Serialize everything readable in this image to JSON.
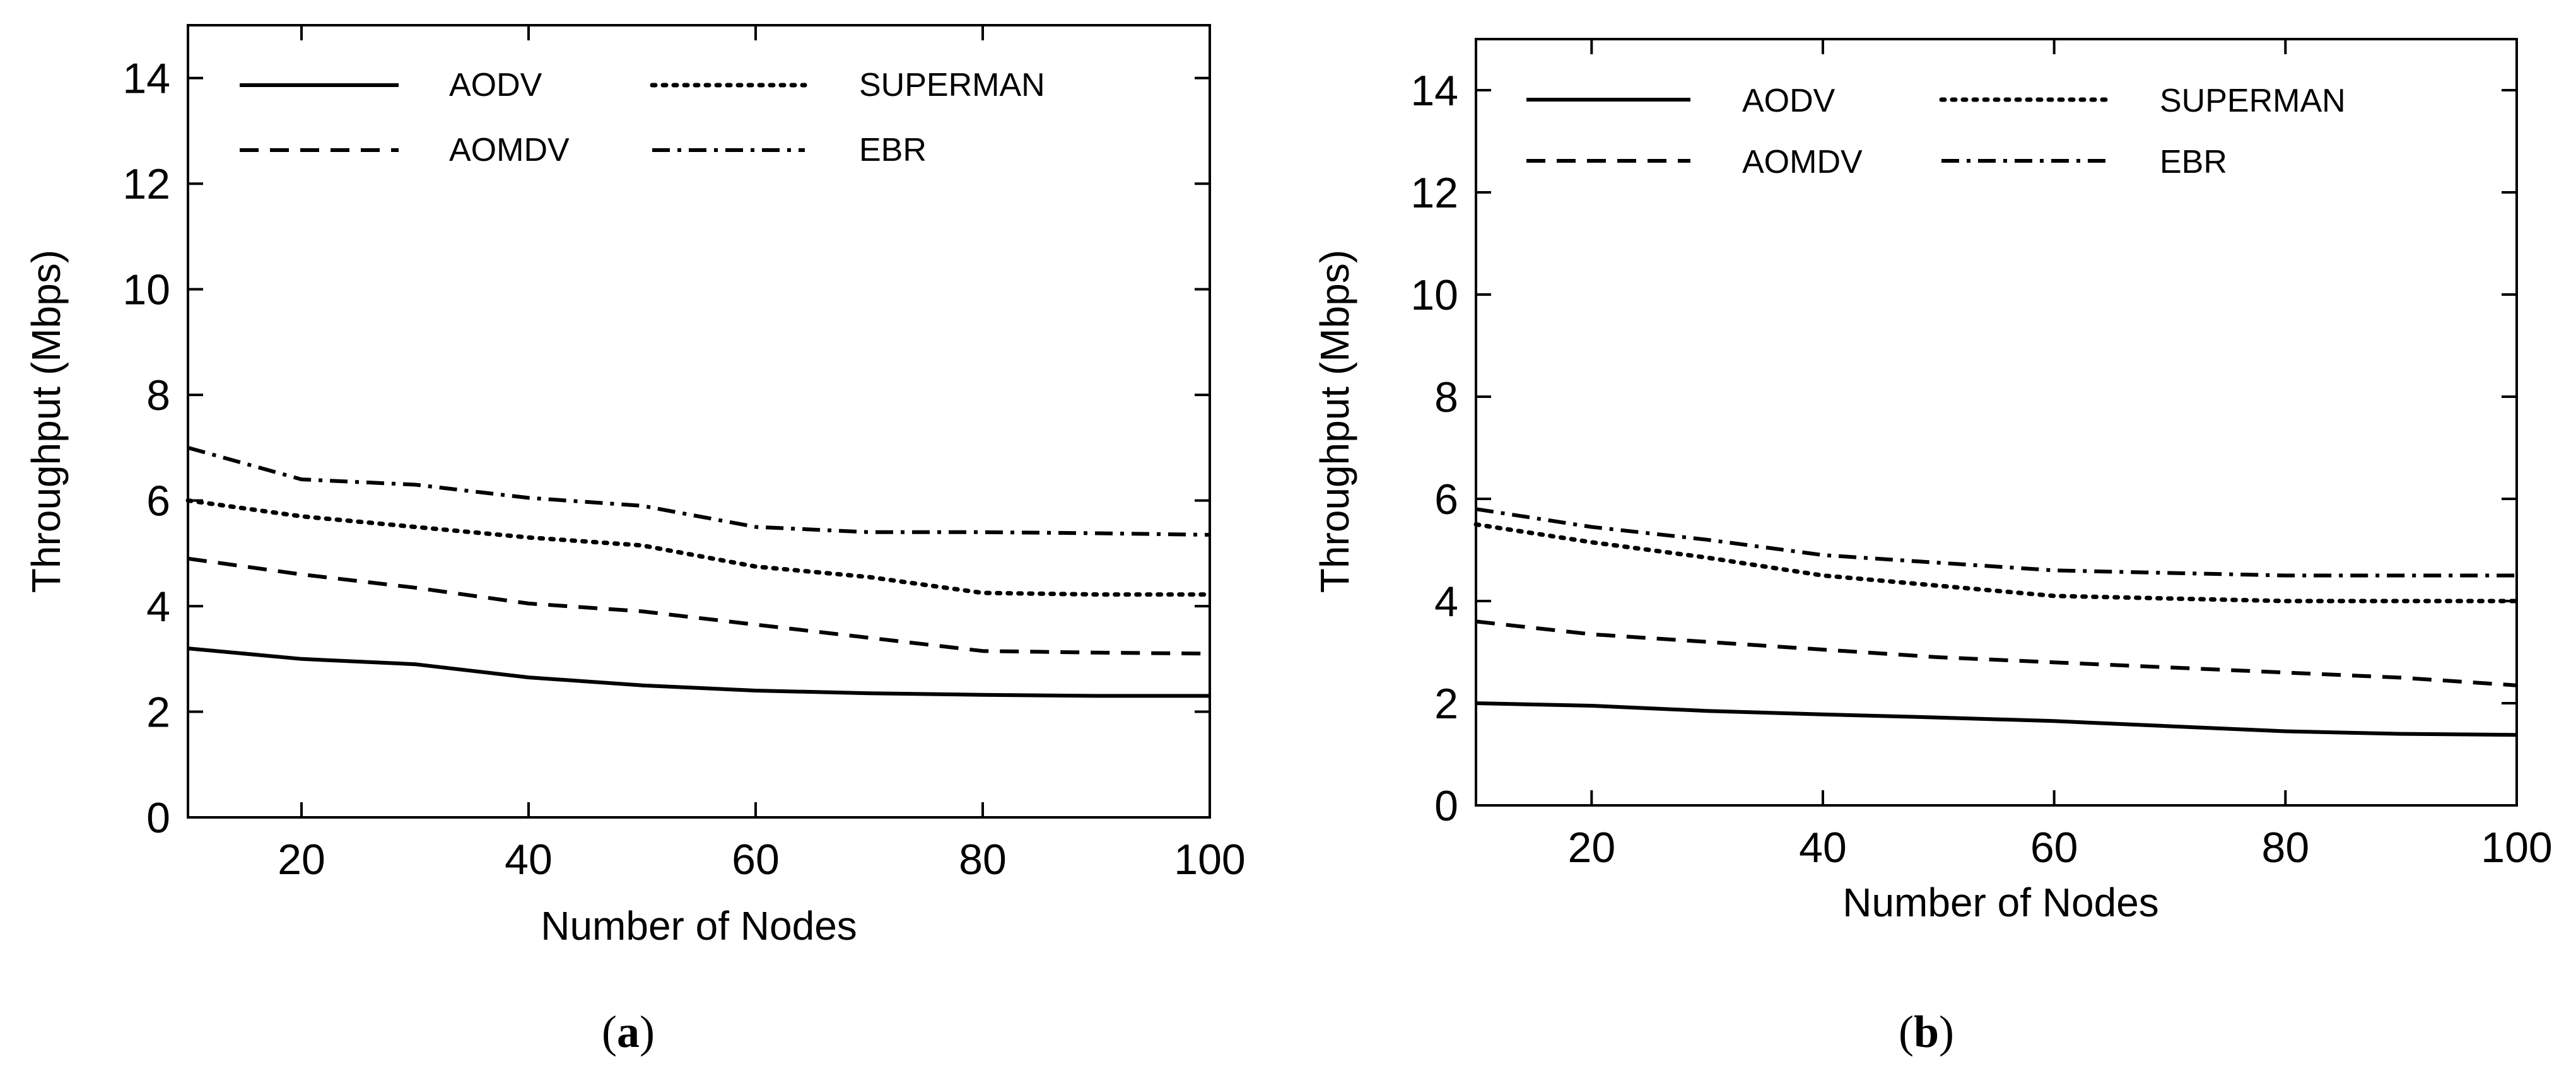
{
  "chart_data": [
    {
      "type": "line",
      "caption_letter": "a",
      "title": "",
      "xlabel": "Number of Nodes",
      "ylabel": "Throughput (Mbps)",
      "xlim": [
        10,
        100
      ],
      "ylim": [
        0,
        15
      ],
      "xticks": [
        20,
        40,
        60,
        80,
        100
      ],
      "yticks": [
        0,
        2,
        4,
        6,
        8,
        10,
        12,
        14
      ],
      "x": [
        10,
        20,
        30,
        40,
        50,
        60,
        70,
        80,
        90,
        100
      ],
      "series": [
        {
          "name": "AODV",
          "style": "solid",
          "values": [
            3.2,
            3.0,
            2.9,
            2.65,
            2.5,
            2.4,
            2.35,
            2.32,
            2.3,
            2.3
          ]
        },
        {
          "name": "AOMDV",
          "style": "dashed",
          "values": [
            4.9,
            4.6,
            4.35,
            4.05,
            3.9,
            3.65,
            3.4,
            3.15,
            3.12,
            3.1
          ]
        },
        {
          "name": "SUPERMAN",
          "style": "dotted",
          "values": [
            6.0,
            5.7,
            5.5,
            5.3,
            5.15,
            4.75,
            4.55,
            4.25,
            4.22,
            4.22
          ]
        },
        {
          "name": "EBR",
          "style": "dashdot",
          "values": [
            7.0,
            6.4,
            6.3,
            6.05,
            5.9,
            5.5,
            5.4,
            5.4,
            5.38,
            5.35
          ]
        }
      ],
      "legend_position": "top"
    },
    {
      "type": "line",
      "caption_letter": "b",
      "title": "",
      "xlabel": "Number of Nodes",
      "ylabel": "Throughput (Mbps)",
      "xlim": [
        10,
        100
      ],
      "ylim": [
        0,
        15
      ],
      "xticks": [
        20,
        40,
        60,
        80,
        100
      ],
      "yticks": [
        0,
        2,
        4,
        6,
        8,
        10,
        12,
        14
      ],
      "x": [
        10,
        20,
        30,
        40,
        50,
        60,
        70,
        80,
        90,
        100
      ],
      "series": [
        {
          "name": "AODV",
          "style": "solid",
          "values": [
            2.0,
            1.95,
            1.85,
            1.78,
            1.72,
            1.65,
            1.55,
            1.45,
            1.4,
            1.38
          ]
        },
        {
          "name": "AOMDV",
          "style": "dashed",
          "values": [
            3.6,
            3.35,
            3.2,
            3.05,
            2.9,
            2.8,
            2.7,
            2.6,
            2.5,
            2.35
          ]
        },
        {
          "name": "SUPERMAN",
          "style": "dotted",
          "values": [
            5.5,
            5.15,
            4.85,
            4.5,
            4.3,
            4.1,
            4.05,
            4.0,
            4.0,
            4.0
          ]
        },
        {
          "name": "EBR",
          "style": "dashdot",
          "values": [
            5.8,
            5.45,
            5.2,
            4.9,
            4.75,
            4.6,
            4.55,
            4.5,
            4.5,
            4.5
          ]
        }
      ],
      "legend_position": "top"
    }
  ]
}
